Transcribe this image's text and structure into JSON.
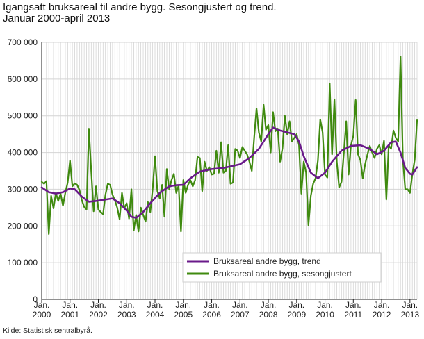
{
  "header": {
    "title_line1": "Igangsatt bruksareal til andre bygg. Sesongjustert og trend.",
    "title_line2": "Januar 2000-april 2013"
  },
  "footer": {
    "source": "Kilde: Statistisk sentralbyrå."
  },
  "colors": {
    "trend": "#6a1a8a",
    "seasonal": "#3f8a0f",
    "grid": "#d4d4d4",
    "axis": "#222222"
  },
  "chart_data": {
    "type": "line",
    "ylim": [
      0,
      700000
    ],
    "yticks": [
      0,
      100000,
      200000,
      300000,
      400000,
      500000,
      600000,
      700000
    ],
    "ytick_labels": [
      "0",
      "100 000",
      "200 000",
      "300 000",
      "400 000",
      "500 000",
      "600 000",
      "700 000"
    ],
    "xticks": [
      {
        "year": 2000,
        "line1": "Jan.",
        "line2": "2000"
      },
      {
        "year": 2001,
        "line1": "Jan.",
        "line2": "2001"
      },
      {
        "year": 2002,
        "line1": "Jan.",
        "line2": "2002"
      },
      {
        "year": 2003,
        "line1": "Jan.",
        "line2": "2003"
      },
      {
        "year": 2004,
        "line1": "Jan.",
        "line2": "2004"
      },
      {
        "year": 2005,
        "line1": "Jan.",
        "line2": "2005"
      },
      {
        "year": 2006,
        "line1": "Jan.",
        "line2": "2006"
      },
      {
        "year": 2007,
        "line1": "Jan.",
        "line2": "2007"
      },
      {
        "year": 2008,
        "line1": "Jan.",
        "line2": "2008"
      },
      {
        "year": 2009,
        "line1": "Jan.",
        "line2": "2009"
      },
      {
        "year": 2010,
        "line1": "Jan.",
        "line2": "2010"
      },
      {
        "year": 2011,
        "line1": "Jan.",
        "line2": "2011"
      },
      {
        "year": 2012,
        "line1": "Jan.",
        "line2": "2012"
      },
      {
        "year": 2013,
        "line1": "Jan.",
        "line2": "2013"
      }
    ],
    "x_start": "2000-01",
    "x_end": "2013-04",
    "legend_position": "bottom-right",
    "grid": true,
    "series": [
      {
        "name": "Bruksareal andre bygg, trend",
        "color": "#6a1a8a",
        "points": [
          [
            "2000-01",
            305000
          ],
          [
            "2000-04",
            292000
          ],
          [
            "2000-07",
            288000
          ],
          [
            "2000-10",
            292000
          ],
          [
            "2001-01",
            302000
          ],
          [
            "2001-03",
            300000
          ],
          [
            "2001-06",
            280000
          ],
          [
            "2001-09",
            266000
          ],
          [
            "2001-12",
            268000
          ],
          [
            "2002-04",
            272000
          ],
          [
            "2002-07",
            275000
          ],
          [
            "2002-10",
            262000
          ],
          [
            "2003-01",
            242000
          ],
          [
            "2003-03",
            225000
          ],
          [
            "2003-05",
            222000
          ],
          [
            "2003-08",
            238000
          ],
          [
            "2003-11",
            262000
          ],
          [
            "2004-03",
            290000
          ],
          [
            "2004-07",
            308000
          ],
          [
            "2004-10",
            311000
          ],
          [
            "2005-01",
            312000
          ],
          [
            "2005-04",
            330000
          ],
          [
            "2005-08",
            348000
          ],
          [
            "2006-01",
            355000
          ],
          [
            "2006-06",
            358000
          ],
          [
            "2007-01",
            368000
          ],
          [
            "2007-05",
            385000
          ],
          [
            "2007-09",
            410000
          ],
          [
            "2008-01",
            450000
          ],
          [
            "2008-03",
            468000
          ],
          [
            "2008-06",
            460000
          ],
          [
            "2008-09",
            455000
          ],
          [
            "2008-12",
            450000
          ],
          [
            "2009-02",
            430000
          ],
          [
            "2009-04",
            390000
          ],
          [
            "2009-07",
            345000
          ],
          [
            "2009-10",
            330000
          ],
          [
            "2010-01",
            345000
          ],
          [
            "2010-04",
            375000
          ],
          [
            "2010-08",
            405000
          ],
          [
            "2010-12",
            418000
          ],
          [
            "2011-04",
            420000
          ],
          [
            "2011-08",
            410000
          ],
          [
            "2011-11",
            395000
          ],
          [
            "2012-02",
            405000
          ],
          [
            "2012-05",
            428000
          ],
          [
            "2012-07",
            430000
          ],
          [
            "2012-09",
            400000
          ],
          [
            "2012-11",
            358000
          ],
          [
            "2013-01",
            342000
          ],
          [
            "2013-02",
            340000
          ],
          [
            "2013-04",
            360000
          ]
        ]
      },
      {
        "name": "Bruksareal andre bygg, sesongjustert",
        "color": "#3f8a0f",
        "points": [
          [
            "2000-01",
            320000
          ],
          [
            "2000-02",
            315000
          ],
          [
            "2000-03",
            322000
          ],
          [
            "2000-04",
            178000
          ],
          [
            "2000-05",
            282000
          ],
          [
            "2000-06",
            248000
          ],
          [
            "2000-07",
            290000
          ],
          [
            "2000-08",
            268000
          ],
          [
            "2000-09",
            288000
          ],
          [
            "2000-10",
            255000
          ],
          [
            "2000-11",
            290000
          ],
          [
            "2000-12",
            318000
          ],
          [
            "2001-01",
            378000
          ],
          [
            "2001-02",
            308000
          ],
          [
            "2001-03",
            316000
          ],
          [
            "2001-04",
            312000
          ],
          [
            "2001-05",
            298000
          ],
          [
            "2001-06",
            270000
          ],
          [
            "2001-07",
            252000
          ],
          [
            "2001-08",
            245000
          ],
          [
            "2001-09",
            465000
          ],
          [
            "2001-10",
            348000
          ],
          [
            "2001-11",
            240000
          ],
          [
            "2001-12",
            308000
          ],
          [
            "2002-01",
            245000
          ],
          [
            "2002-02",
            238000
          ],
          [
            "2002-03",
            232000
          ],
          [
            "2002-04",
            285000
          ],
          [
            "2002-05",
            315000
          ],
          [
            "2002-06",
            312000
          ],
          [
            "2002-07",
            285000
          ],
          [
            "2002-08",
            270000
          ],
          [
            "2002-09",
            250000
          ],
          [
            "2002-10",
            218000
          ],
          [
            "2002-11",
            290000
          ],
          [
            "2002-12",
            248000
          ],
          [
            "2003-01",
            262000
          ],
          [
            "2003-02",
            220000
          ],
          [
            "2003-03",
            300000
          ],
          [
            "2003-04",
            188000
          ],
          [
            "2003-05",
            230000
          ],
          [
            "2003-06",
            185000
          ],
          [
            "2003-07",
            250000
          ],
          [
            "2003-08",
            230000
          ],
          [
            "2003-09",
            212000
          ],
          [
            "2003-10",
            265000
          ],
          [
            "2003-11",
            238000
          ],
          [
            "2003-12",
            300000
          ],
          [
            "2004-01",
            390000
          ],
          [
            "2004-02",
            295000
          ],
          [
            "2004-03",
            275000
          ],
          [
            "2004-04",
            312000
          ],
          [
            "2004-05",
            225000
          ],
          [
            "2004-06",
            355000
          ],
          [
            "2004-07",
            300000
          ],
          [
            "2004-08",
            325000
          ],
          [
            "2004-09",
            342000
          ],
          [
            "2004-10",
            290000
          ],
          [
            "2004-11",
            310000
          ],
          [
            "2004-12",
            185000
          ],
          [
            "2005-01",
            325000
          ],
          [
            "2005-02",
            290000
          ],
          [
            "2005-03",
            312000
          ],
          [
            "2005-04",
            325000
          ],
          [
            "2005-05",
            308000
          ],
          [
            "2005-06",
            325000
          ],
          [
            "2005-07",
            388000
          ],
          [
            "2005-08",
            385000
          ],
          [
            "2005-09",
            295000
          ],
          [
            "2005-10",
            375000
          ],
          [
            "2005-11",
            350000
          ],
          [
            "2005-12",
            360000
          ],
          [
            "2006-01",
            340000
          ],
          [
            "2006-02",
            342000
          ],
          [
            "2006-03",
            405000
          ],
          [
            "2006-04",
            345000
          ],
          [
            "2006-05",
            428000
          ],
          [
            "2006-06",
            345000
          ],
          [
            "2006-07",
            350000
          ],
          [
            "2006-08",
            420000
          ],
          [
            "2006-09",
            315000
          ],
          [
            "2006-10",
            318000
          ],
          [
            "2006-11",
            410000
          ],
          [
            "2006-12",
            405000
          ],
          [
            "2007-01",
            385000
          ],
          [
            "2007-02",
            415000
          ],
          [
            "2007-03",
            405000
          ],
          [
            "2007-04",
            395000
          ],
          [
            "2007-05",
            375000
          ],
          [
            "2007-06",
            350000
          ],
          [
            "2007-07",
            440000
          ],
          [
            "2007-08",
            520000
          ],
          [
            "2007-09",
            455000
          ],
          [
            "2007-10",
            430000
          ],
          [
            "2007-11",
            530000
          ],
          [
            "2007-12",
            462000
          ],
          [
            "2008-01",
            475000
          ],
          [
            "2008-02",
            400000
          ],
          [
            "2008-03",
            510000
          ],
          [
            "2008-04",
            458000
          ],
          [
            "2008-05",
            465000
          ],
          [
            "2008-06",
            375000
          ],
          [
            "2008-07",
            412000
          ],
          [
            "2008-08",
            500000
          ],
          [
            "2008-09",
            450000
          ],
          [
            "2008-10",
            485000
          ],
          [
            "2008-11",
            430000
          ],
          [
            "2008-12",
            440000
          ],
          [
            "2009-01",
            450000
          ],
          [
            "2009-02",
            420000
          ],
          [
            "2009-03",
            288000
          ],
          [
            "2009-04",
            375000
          ],
          [
            "2009-05",
            345000
          ],
          [
            "2009-06",
            202000
          ],
          [
            "2009-07",
            282000
          ],
          [
            "2009-08",
            315000
          ],
          [
            "2009-09",
            330000
          ],
          [
            "2009-10",
            378000
          ],
          [
            "2009-11",
            490000
          ],
          [
            "2009-12",
            455000
          ],
          [
            "2010-01",
            340000
          ],
          [
            "2010-02",
            332000
          ],
          [
            "2010-03",
            588000
          ],
          [
            "2010-04",
            395000
          ],
          [
            "2010-05",
            545000
          ],
          [
            "2010-06",
            375000
          ],
          [
            "2010-07",
            305000
          ],
          [
            "2010-08",
            320000
          ],
          [
            "2010-09",
            400000
          ],
          [
            "2010-10",
            485000
          ],
          [
            "2010-11",
            340000
          ],
          [
            "2010-12",
            420000
          ],
          [
            "2011-01",
            445000
          ],
          [
            "2011-02",
            543000
          ],
          [
            "2011-03",
            395000
          ],
          [
            "2011-04",
            380000
          ],
          [
            "2011-05",
            330000
          ],
          [
            "2011-06",
            368000
          ],
          [
            "2011-07",
            395000
          ],
          [
            "2011-08",
            418000
          ],
          [
            "2011-09",
            400000
          ],
          [
            "2011-10",
            385000
          ],
          [
            "2011-11",
            410000
          ],
          [
            "2011-12",
            420000
          ],
          [
            "2012-01",
            395000
          ],
          [
            "2012-02",
            432000
          ],
          [
            "2012-03",
            272000
          ],
          [
            "2012-04",
            420000
          ],
          [
            "2012-05",
            410000
          ],
          [
            "2012-06",
            460000
          ],
          [
            "2012-07",
            440000
          ],
          [
            "2012-08",
            430000
          ],
          [
            "2012-09",
            662000
          ],
          [
            "2012-10",
            380000
          ],
          [
            "2012-11",
            300000
          ],
          [
            "2012-12",
            300000
          ],
          [
            "2013-01",
            290000
          ],
          [
            "2013-02",
            340000
          ],
          [
            "2013-03",
            380000
          ],
          [
            "2013-04",
            488000
          ]
        ]
      }
    ]
  }
}
